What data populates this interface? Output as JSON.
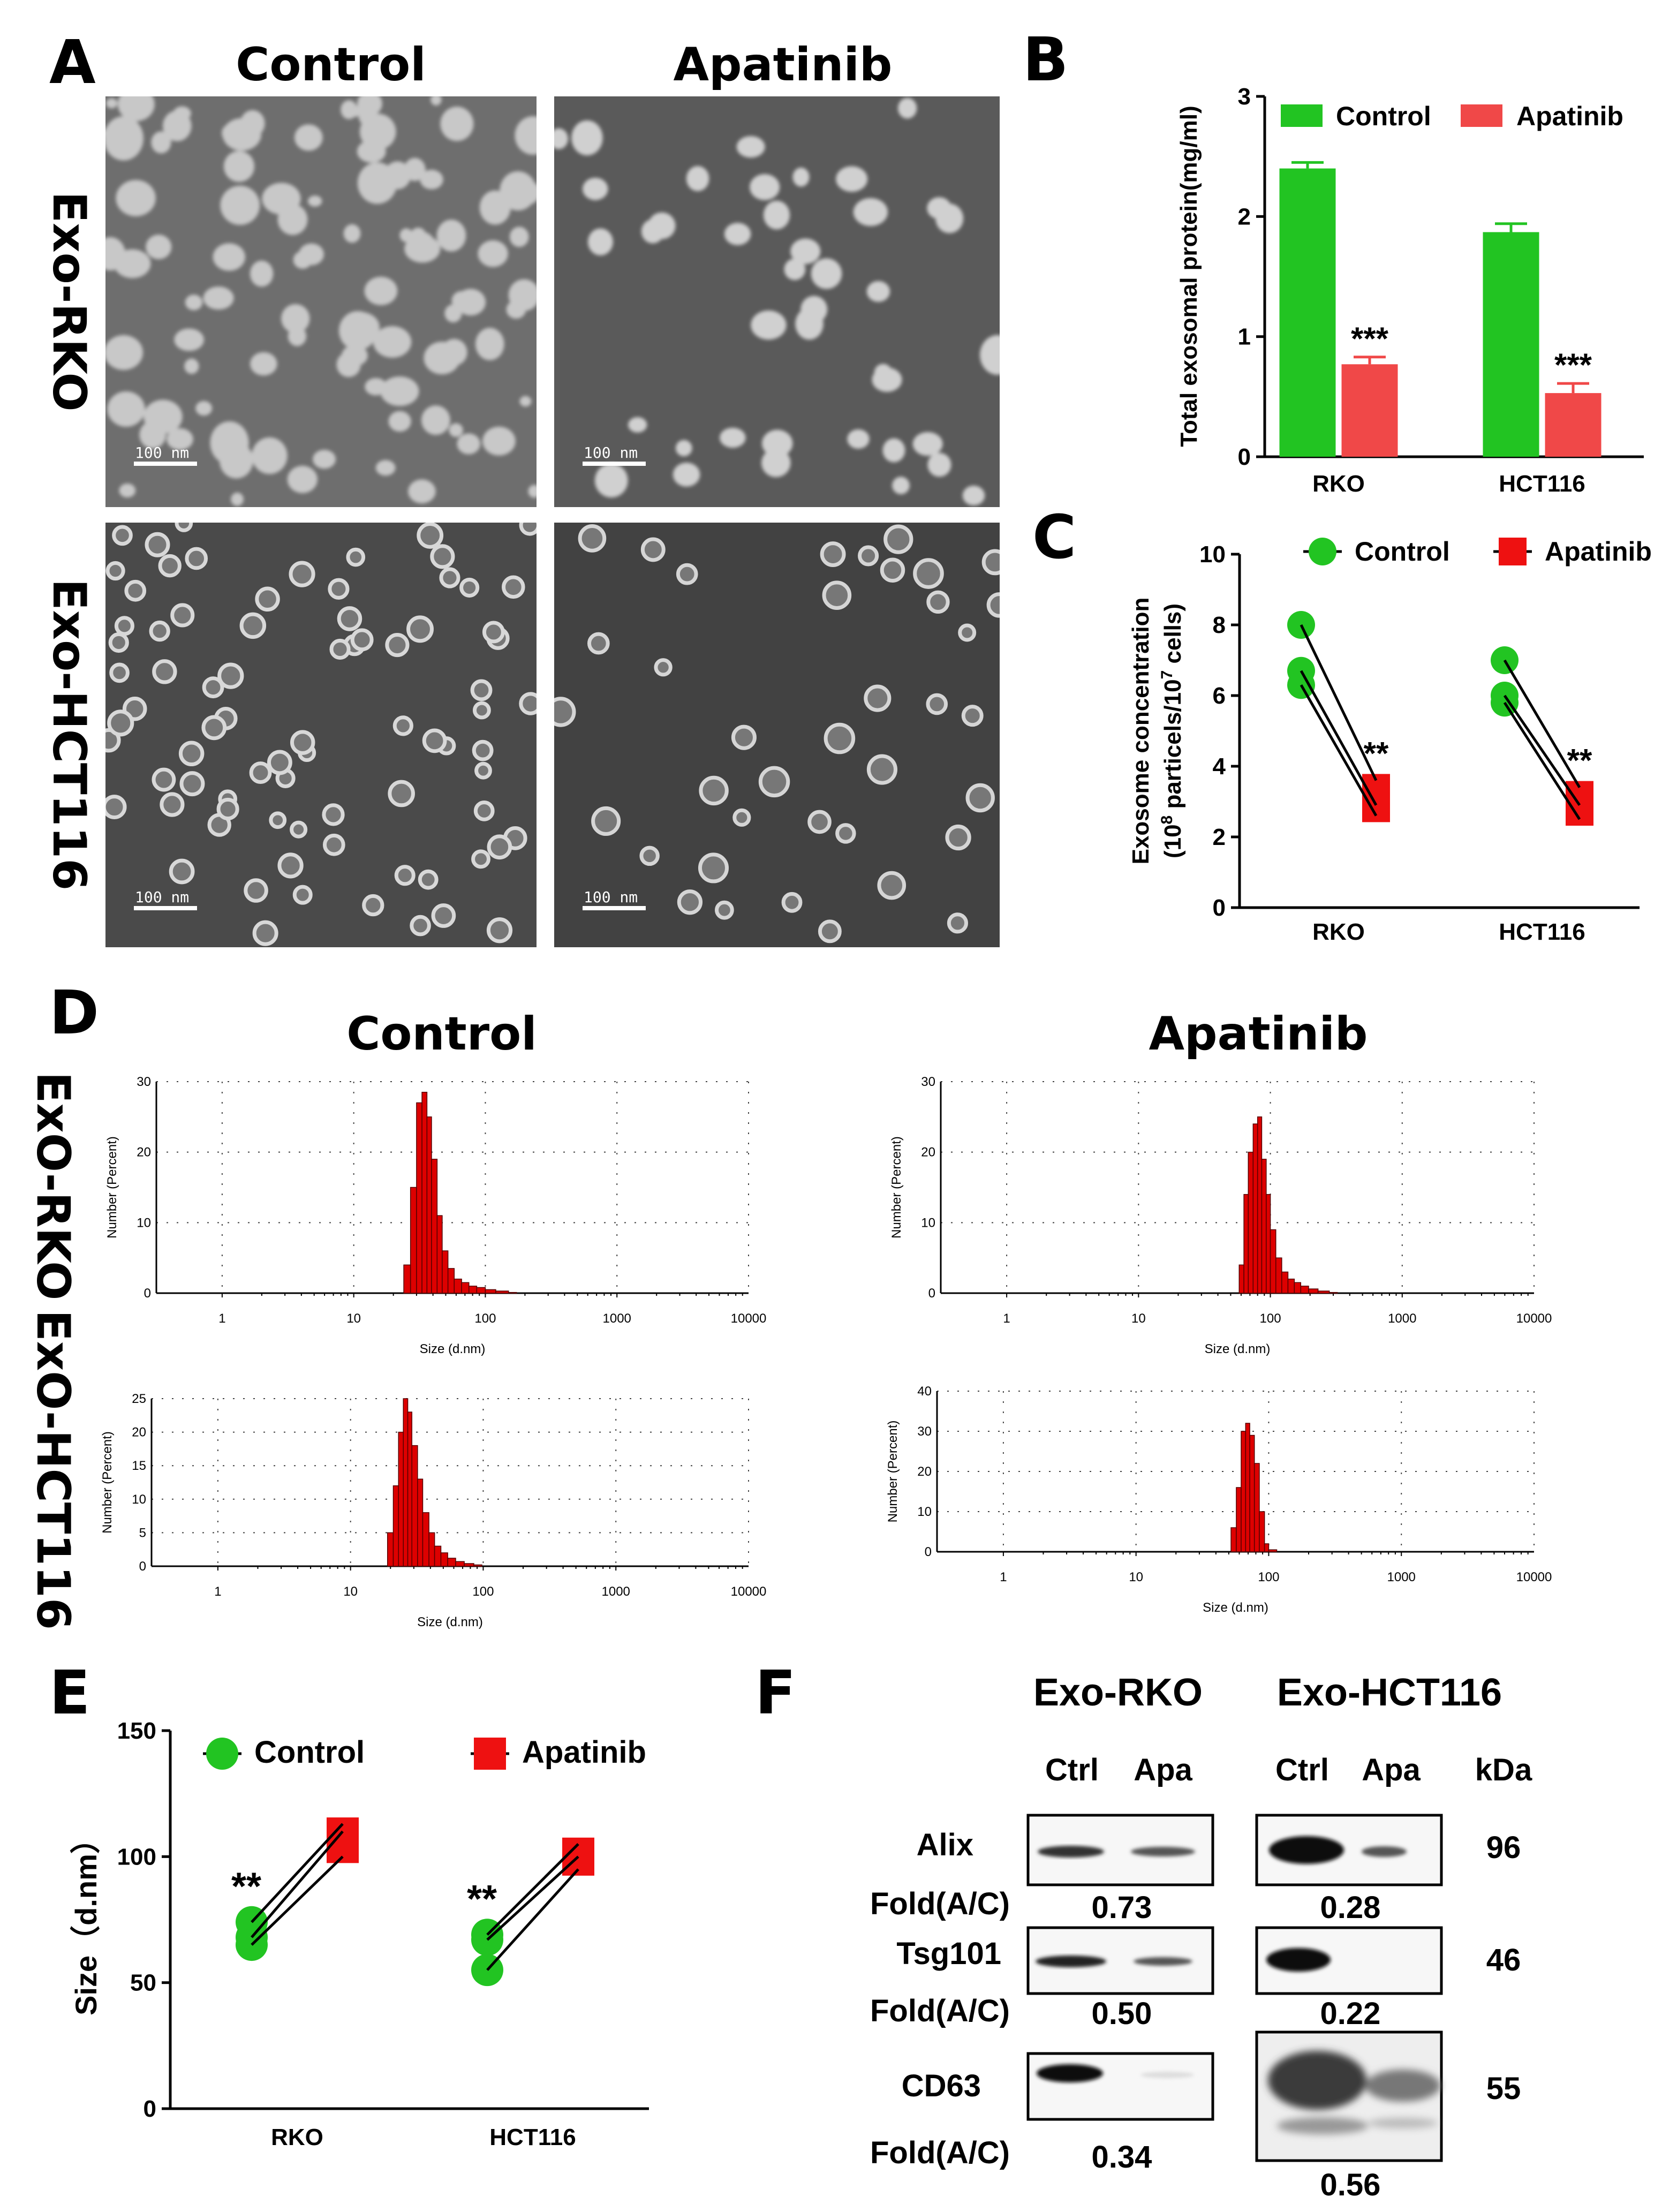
{
  "colors": {
    "control_green": "#22c422",
    "apatinib_red": "#f04848",
    "marker_red": "#ee1111",
    "hist_red": "#dd0000"
  },
  "panel_labels": {
    "a": "A",
    "b": "B",
    "c": "C",
    "d": "D",
    "e": "E",
    "f": "F"
  },
  "panel_a": {
    "col_control": "Control",
    "col_apatinib": "Apatinib",
    "row_rko": "Exo-RKO",
    "row_hct": "Exo-HCT116",
    "scale_bar": "100 nm"
  },
  "chart_data": [
    {
      "id": "B",
      "type": "bar",
      "categories": [
        "RKO",
        "HCT116"
      ],
      "series": [
        {
          "name": "Control",
          "values": [
            2.4,
            1.87
          ],
          "errors": [
            0.05,
            0.07
          ]
        },
        {
          "name": "Apatinib",
          "values": [
            0.77,
            0.53
          ],
          "errors": [
            0.06,
            0.08
          ]
        }
      ],
      "annotations": [
        "***",
        "***"
      ],
      "ylabel": "Total exosomal protein(mg/ml)",
      "ylim": [
        0,
        3
      ],
      "yticks": [
        "0",
        "1",
        "2",
        "3"
      ]
    },
    {
      "id": "C",
      "type": "scatter",
      "categories": [
        "RKO",
        "HCT116"
      ],
      "series": [
        {
          "name": "Control",
          "values": [
            [
              8.0,
              6.7,
              6.3
            ],
            [
              7.0,
              6.0,
              5.8
            ]
          ]
        },
        {
          "name": "Apatinib",
          "values": [
            [
              3.6,
              2.9,
              2.6
            ],
            [
              3.4,
              2.9,
              2.5
            ]
          ]
        }
      ],
      "annotations": [
        "**",
        "**"
      ],
      "ylabel_main": "Exosome concentration",
      "ylabel_pre": "(10",
      "ylabel_sup1": "8",
      "ylabel_mid": " particels/10",
      "ylabel_sup2": "7",
      "ylabel_post": " cells)",
      "ylim": [
        0,
        10
      ],
      "yticks": [
        "0",
        "2",
        "4",
        "6",
        "8",
        "10"
      ]
    },
    {
      "id": "D",
      "type": "bar",
      "header_control": "Control",
      "header_apatinib": "Apatinib",
      "row_rko": "ExO-RKO",
      "row_hct": "ExO-HCT116",
      "xlabel": "Size (d.nm)",
      "ylabel": "Number (Percent)",
      "xticks": [
        "1",
        "10",
        "100",
        "1000",
        "10000"
      ],
      "histograms": [
        {
          "name": "Control ExO-RKO",
          "ymax": 30,
          "yticks": [
            "0",
            "10",
            "20",
            "30"
          ],
          "sizes": [
            24,
            27,
            30,
            33,
            36,
            39,
            43,
            47,
            52,
            58,
            66,
            75,
            86,
            100,
            120,
            150
          ],
          "values": [
            4,
            15,
            27,
            28.5,
            25,
            19,
            11,
            6,
            3.5,
            2,
            1.5,
            1,
            0.8,
            0.5,
            0.3,
            0.1
          ]
        },
        {
          "name": "Apatinib ExO-RKO",
          "ymax": 30,
          "yticks": [
            "0",
            "10",
            "20",
            "30"
          ],
          "sizes": [
            58,
            63,
            68,
            74,
            80,
            86,
            93,
            100,
            110,
            122,
            136,
            152,
            170,
            195,
            230,
            280
          ],
          "values": [
            4,
            14,
            20,
            24,
            25,
            19,
            14,
            9,
            5,
            3,
            2,
            1.5,
            1,
            0.6,
            0.3,
            0.1
          ]
        },
        {
          "name": "Control ExO-HCT116",
          "ymax": 25,
          "yticks": [
            "0",
            "5",
            "10",
            "15",
            "20",
            "25"
          ],
          "sizes": [
            19,
            21,
            23,
            25,
            27,
            29,
            32,
            35,
            39,
            43,
            48,
            54,
            62,
            72,
            85
          ],
          "values": [
            5,
            12,
            20,
            25,
            23,
            18,
            13,
            8,
            5,
            3,
            2,
            1.2,
            0.7,
            0.4,
            0.2
          ]
        },
        {
          "name": "Apatinib ExO-HCT116",
          "ymax": 40,
          "yticks": [
            "0",
            "10",
            "20",
            "30",
            "40"
          ],
          "sizes": [
            52,
            57,
            62,
            67,
            72,
            78,
            85,
            93,
            100
          ],
          "values": [
            6,
            16,
            30,
            32,
            29,
            22,
            10,
            2,
            0.5
          ]
        }
      ]
    },
    {
      "id": "E",
      "type": "scatter",
      "categories": [
        "RKO",
        "HCT116"
      ],
      "series": [
        {
          "name": "Control",
          "values": [
            [
              74,
              68,
              65
            ],
            [
              69,
              67,
              55
            ]
          ]
        },
        {
          "name": "Apatinib",
          "values": [
            [
              113,
              110,
              100
            ],
            [
              105,
              100,
              95
            ]
          ]
        }
      ],
      "annotations": [
        "**",
        "**"
      ],
      "ylabel": "Size（d.nm）",
      "ylim": [
        0,
        150
      ],
      "yticks": [
        "0",
        "50",
        "100",
        "150"
      ]
    }
  ],
  "panel_f": {
    "col_rko": "Exo-RKO",
    "col_hct": "Exo-HCT116",
    "ctrl": "Ctrl",
    "apa": "Apa",
    "kda": "kDa",
    "fold": "Fold(A/C)",
    "rows": [
      {
        "protein": "Alix",
        "kda": "96",
        "fold_rko": "0.73",
        "fold_hct": "0.28"
      },
      {
        "protein": "Tsg101",
        "kda": "46",
        "fold_rko": "0.50",
        "fold_hct": "0.22"
      },
      {
        "protein": "CD63",
        "kda": "55",
        "fold_rko": "0.34",
        "fold_hct": "0.56"
      }
    ]
  }
}
